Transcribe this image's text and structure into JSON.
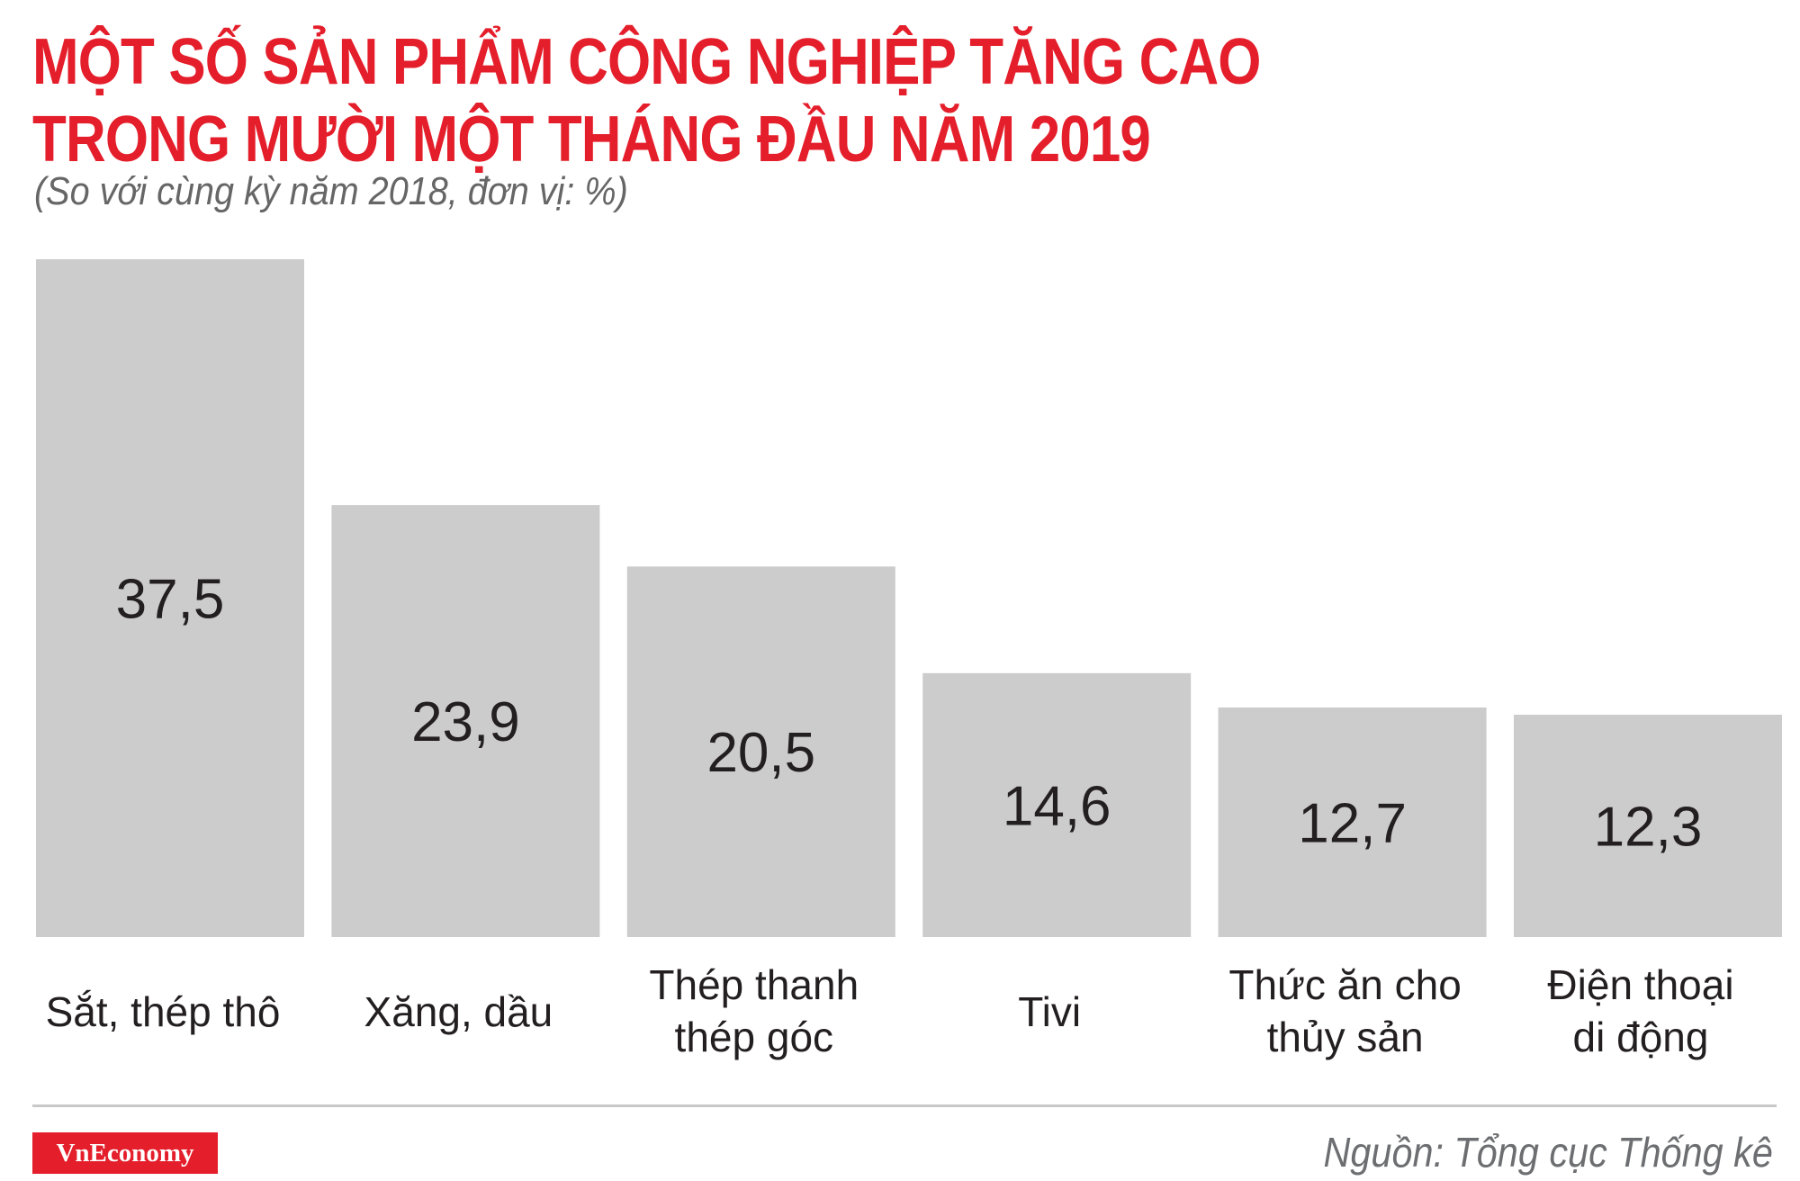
{
  "header": {
    "title_line1": "MỘT SỐ SẢN PHẨM CÔNG NGHIỆP TĂNG CAO",
    "title_line2": "TRONG MƯỜI MỘT THÁNG ĐẦU NĂM 2019",
    "subtitle": "(So với cùng kỳ năm 2018, đơn vị: %)"
  },
  "chart_data": {
    "type": "bar",
    "title": "MỘT SỐ SẢN PHẨM CÔNG NGHIỆP TĂNG CAO TRONG MƯỜI MỘT THÁNG ĐẦU NĂM 2019",
    "subtitle": "(So với cùng kỳ năm 2018, đơn vị: %)",
    "categories": [
      [
        "Sắt, thép thô"
      ],
      [
        "Xăng, dầu"
      ],
      [
        "Thép thanh",
        "thép góc"
      ],
      [
        "Tivi"
      ],
      [
        "Thức ăn cho",
        "thủy sản"
      ],
      [
        "Điện thoại",
        "di động"
      ]
    ],
    "values": [
      37.5,
      23.9,
      20.5,
      14.6,
      12.7,
      12.3
    ],
    "value_labels": [
      "37,5",
      "23,9",
      "20,5",
      "14,6",
      "12,7",
      "12,3"
    ],
    "ylim": [
      0,
      37.5
    ],
    "grid": false,
    "bar_color": "#cdcccc",
    "title_color": "#e41e2b"
  },
  "footer": {
    "brand": "VnEconomy",
    "source": "Nguồn: Tổng cục Thống kê"
  }
}
